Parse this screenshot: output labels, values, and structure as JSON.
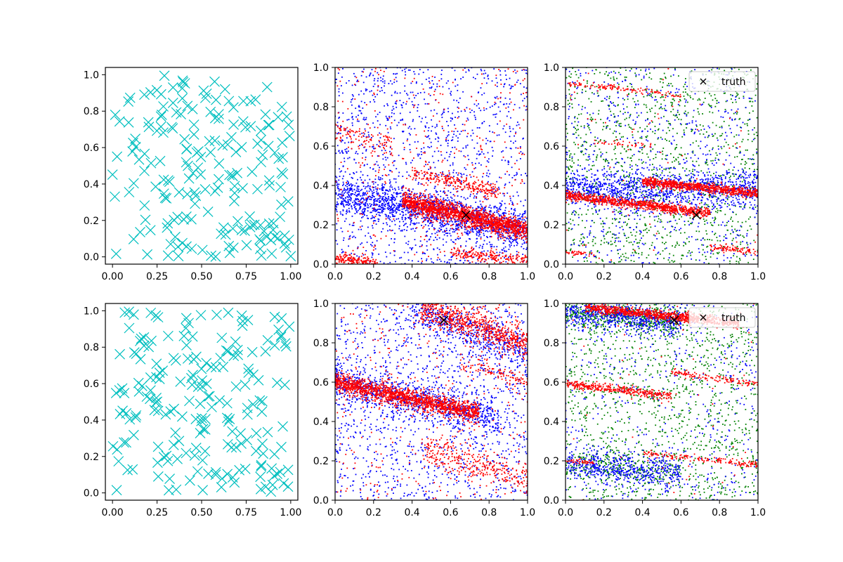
{
  "figure": {
    "background": "#ffffff"
  },
  "colors": {
    "cyan": "#00bfbf",
    "blue": "#0000ff",
    "red": "#ff0000",
    "green": "#008000",
    "black": "#000000"
  },
  "chart_data": [
    {
      "id": "r1c1",
      "type": "scatter",
      "marker": "x-large",
      "color": "#00bfbf",
      "xlim": [
        -0.04,
        1.04
      ],
      "ylim": [
        -0.04,
        1.04
      ],
      "xticks": [
        0,
        0.25,
        0.5,
        0.75,
        1
      ],
      "xticklabels": [
        "0.00",
        "0.25",
        "0.50",
        "0.75",
        "1.00"
      ],
      "yticks": [
        0,
        0.2,
        0.4,
        0.6,
        0.8,
        1
      ],
      "yticklabels": [
        "0.0",
        "0.2",
        "0.4",
        "0.6",
        "0.8",
        "1.0"
      ],
      "points": {
        "distribution": "uniform",
        "count": 200,
        "x_range": [
          0,
          1
        ],
        "y_range": [
          0,
          1
        ]
      }
    },
    {
      "id": "r1c2",
      "type": "scatter",
      "marker": "dot",
      "xlim": [
        0,
        1
      ],
      "ylim": [
        0,
        1
      ],
      "xticks": [
        0,
        0.2,
        0.4,
        0.6,
        0.8,
        1
      ],
      "xticklabels": [
        "0.0",
        "0.2",
        "0.4",
        "0.6",
        "0.8",
        "1.0"
      ],
      "yticks": [
        0,
        0.2,
        0.4,
        0.6,
        0.8,
        1
      ],
      "yticklabels": [
        "0.0",
        "0.2",
        "0.4",
        "0.6",
        "0.8",
        "1.0"
      ],
      "series": [
        {
          "color": "#0000ff",
          "uniform_count": 1300,
          "bands": [
            {
              "x_range": [
                0,
                1
              ],
              "y_at_x0": 0.36,
              "y_at_x1": 0.17,
              "spread": 0.05,
              "count": 1500
            }
          ]
        },
        {
          "color": "#ff0000",
          "uniform_count": 350,
          "bands": [
            {
              "x_range": [
                0.35,
                1
              ],
              "y_at_x0": 0.32,
              "y_at_x1": 0.17,
              "spread": 0.025,
              "count": 1700
            },
            {
              "x_range": [
                0.4,
                0.85
              ],
              "y_at_x0": 0.47,
              "y_at_x1": 0.36,
              "spread": 0.02,
              "count": 250
            },
            {
              "x_range": [
                0,
                0.22
              ],
              "y_at_x0": 0.03,
              "y_at_x1": 0.0,
              "spread": 0.015,
              "count": 200
            },
            {
              "x_range": [
                0.6,
                1
              ],
              "y_at_x0": 0.06,
              "y_at_x1": 0.02,
              "spread": 0.015,
              "count": 200
            },
            {
              "x_range": [
                0,
                0.3
              ],
              "y_at_x0": 0.68,
              "y_at_x1": 0.6,
              "spread": 0.03,
              "count": 100
            }
          ]
        }
      ],
      "truth": {
        "x": 0.68,
        "y": 0.25,
        "color": "#000000"
      }
    },
    {
      "id": "r1c3",
      "type": "scatter",
      "marker": "dot",
      "xlim": [
        0,
        1
      ],
      "ylim": [
        0,
        1
      ],
      "xticks": [
        0,
        0.2,
        0.4,
        0.6,
        0.8,
        1
      ],
      "xticklabels": [
        "0.0",
        "0.2",
        "0.4",
        "0.6",
        "0.8",
        "1.0"
      ],
      "yticks": [
        0,
        0.2,
        0.4,
        0.6,
        0.8,
        1
      ],
      "yticklabels": [
        "0.0",
        "0.2",
        "0.4",
        "0.6",
        "0.8",
        "1.0"
      ],
      "series": [
        {
          "color": "#008000",
          "uniform_count": 1300,
          "bands": []
        },
        {
          "color": "#0000ff",
          "uniform_count": 700,
          "bands": [
            {
              "x_range": [
                0,
                1
              ],
              "y_at_x0": 0.38,
              "y_at_x1": 0.38,
              "spread": 0.05,
              "count": 1100
            }
          ]
        },
        {
          "color": "#ff0000",
          "uniform_count": 60,
          "bands": [
            {
              "x_range": [
                0,
                0.75
              ],
              "y_at_x0": 0.35,
              "y_at_x1": 0.26,
              "spread": 0.012,
              "count": 900
            },
            {
              "x_range": [
                0.4,
                1
              ],
              "y_at_x0": 0.42,
              "y_at_x1": 0.36,
              "spread": 0.012,
              "count": 800
            },
            {
              "x_range": [
                0,
                0.6
              ],
              "y_at_x0": 0.92,
              "y_at_x1": 0.86,
              "spread": 0.008,
              "count": 120
            },
            {
              "x_range": [
                0.75,
                1
              ],
              "y_at_x0": 0.09,
              "y_at_x1": 0.06,
              "spread": 0.008,
              "count": 90
            },
            {
              "x_range": [
                0,
                0.15
              ],
              "y_at_x0": 0.06,
              "y_at_x1": 0.05,
              "spread": 0.006,
              "count": 40
            },
            {
              "x_range": [
                0.15,
                0.45
              ],
              "y_at_x0": 0.62,
              "y_at_x1": 0.6,
              "spread": 0.006,
              "count": 40
            }
          ]
        }
      ],
      "truth": {
        "x": 0.68,
        "y": 0.25,
        "color": "#000000"
      },
      "legend": {
        "label": "truth",
        "position": "upper right"
      }
    },
    {
      "id": "r2c1",
      "type": "scatter",
      "marker": "x-large",
      "color": "#00bfbf",
      "xlim": [
        -0.04,
        1.04
      ],
      "ylim": [
        -0.04,
        1.04
      ],
      "xticks": [
        0,
        0.25,
        0.5,
        0.75,
        1
      ],
      "xticklabels": [
        "0.00",
        "0.25",
        "0.50",
        "0.75",
        "1.00"
      ],
      "yticks": [
        0,
        0.2,
        0.4,
        0.6,
        0.8,
        1
      ],
      "yticklabels": [
        "0.0",
        "0.2",
        "0.4",
        "0.6",
        "0.8",
        "1.0"
      ],
      "points": {
        "distribution": "uniform",
        "count": 200,
        "x_range": [
          0,
          1
        ],
        "y_range": [
          0,
          1
        ]
      }
    },
    {
      "id": "r2c2",
      "type": "scatter",
      "marker": "dot",
      "xlim": [
        0,
        1
      ],
      "ylim": [
        0,
        1
      ],
      "xticks": [
        0,
        0.2,
        0.4,
        0.6,
        0.8,
        1
      ],
      "xticklabels": [
        "0.0",
        "0.2",
        "0.4",
        "0.6",
        "0.8",
        "1.0"
      ],
      "yticks": [
        0,
        0.2,
        0.4,
        0.6,
        0.8,
        1
      ],
      "yticklabels": [
        "0.0",
        "0.2",
        "0.4",
        "0.6",
        "0.8",
        "1.0"
      ],
      "series": [
        {
          "color": "#0000ff",
          "uniform_count": 1300,
          "bands": [
            {
              "x_range": [
                0,
                0.85
              ],
              "y_at_x0": 0.6,
              "y_at_x1": 0.42,
              "spread": 0.05,
              "count": 900
            },
            {
              "x_range": [
                0.4,
                1
              ],
              "y_at_x0": 0.97,
              "y_at_x1": 0.75,
              "spread": 0.05,
              "count": 450
            }
          ]
        },
        {
          "color": "#ff0000",
          "uniform_count": 350,
          "bands": [
            {
              "x_range": [
                0,
                0.75
              ],
              "y_at_x0": 0.6,
              "y_at_x1": 0.44,
              "spread": 0.025,
              "count": 1500
            },
            {
              "x_range": [
                0.45,
                1
              ],
              "y_at_x0": 0.97,
              "y_at_x1": 0.8,
              "spread": 0.04,
              "count": 700
            },
            {
              "x_range": [
                0.45,
                1
              ],
              "y_at_x0": 0.26,
              "y_at_x1": 0.1,
              "spread": 0.04,
              "count": 300
            },
            {
              "x_range": [
                0.65,
                1
              ],
              "y_at_x0": 0.7,
              "y_at_x1": 0.6,
              "spread": 0.02,
              "count": 100
            }
          ]
        }
      ],
      "truth": {
        "x": 0.565,
        "y": 0.915,
        "color": "#000000"
      }
    },
    {
      "id": "r2c3",
      "type": "scatter",
      "marker": "dot",
      "xlim": [
        0,
        1
      ],
      "ylim": [
        0,
        1
      ],
      "xticks": [
        0,
        0.2,
        0.4,
        0.6,
        0.8,
        1
      ],
      "xticklabels": [
        "0.0",
        "0.2",
        "0.4",
        "0.6",
        "0.8",
        "1.0"
      ],
      "yticks": [
        0,
        0.2,
        0.4,
        0.6,
        0.8,
        1
      ],
      "yticklabels": [
        "0.0",
        "0.2",
        "0.4",
        "0.6",
        "0.8",
        "1.0"
      ],
      "series": [
        {
          "color": "#008000",
          "uniform_count": 1300,
          "bands": [
            {
              "x_range": [
                0,
                0.6
              ],
              "y_at_x0": 0.96,
              "y_at_x1": 0.9,
              "spread": 0.035,
              "count": 400
            },
            {
              "x_range": [
                0,
                0.6
              ],
              "y_at_x0": 0.18,
              "y_at_x1": 0.15,
              "spread": 0.04,
              "count": 250
            }
          ]
        },
        {
          "color": "#0000ff",
          "uniform_count": 500,
          "bands": [
            {
              "x_range": [
                0,
                0.6
              ],
              "y_at_x0": 0.96,
              "y_at_x1": 0.9,
              "spread": 0.035,
              "count": 600
            },
            {
              "x_range": [
                0,
                0.6
              ],
              "y_at_x0": 0.18,
              "y_at_x1": 0.14,
              "spread": 0.04,
              "count": 500
            }
          ]
        },
        {
          "color": "#ff0000",
          "uniform_count": 60,
          "bands": [
            {
              "x_range": [
                0.1,
                0.9
              ],
              "y_at_x0": 0.98,
              "y_at_x1": 0.9,
              "spread": 0.012,
              "count": 900
            },
            {
              "x_range": [
                0,
                0.55
              ],
              "y_at_x0": 0.59,
              "y_at_x1": 0.53,
              "spread": 0.01,
              "count": 350
            },
            {
              "x_range": [
                0.55,
                1
              ],
              "y_at_x0": 0.65,
              "y_at_x1": 0.59,
              "spread": 0.008,
              "count": 120
            },
            {
              "x_range": [
                0.4,
                1
              ],
              "y_at_x0": 0.24,
              "y_at_x1": 0.18,
              "spread": 0.008,
              "count": 160
            },
            {
              "x_range": [
                0,
                0.15
              ],
              "y_at_x0": 0.2,
              "y_at_x1": 0.19,
              "spread": 0.006,
              "count": 40
            }
          ]
        }
      ],
      "truth": {
        "x": 0.565,
        "y": 0.915,
        "color": "#000000"
      },
      "legend": {
        "label": "truth",
        "position": "upper right"
      }
    }
  ]
}
